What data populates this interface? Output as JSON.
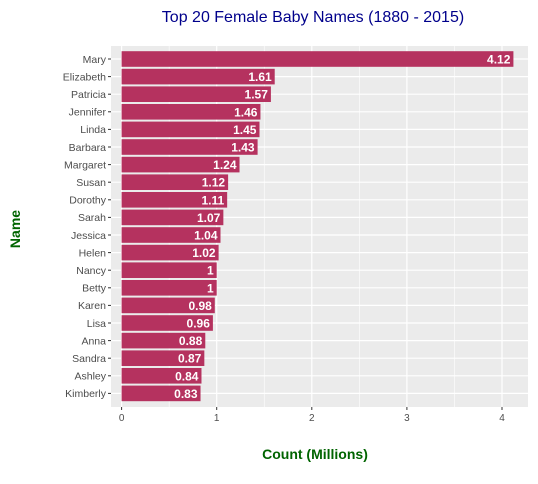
{
  "colors": {
    "title": "#00008b",
    "axis_title": "#006400",
    "bar": "#b5325f",
    "panel": "#ebebeb",
    "grid": "#ffffff",
    "bar_label": "#ffffff"
  },
  "chart_data": {
    "type": "bar",
    "orientation": "horizontal",
    "title": "Top 20 Female Baby Names (1880 - 2015)",
    "xlabel": "Count (Millions)",
    "ylabel": "Name",
    "xlim": [
      0,
      4.3
    ],
    "xticks": [
      0,
      1,
      2,
      3,
      4
    ],
    "grid": true,
    "categories": [
      "Mary",
      "Elizabeth",
      "Patricia",
      "Jennifer",
      "Linda",
      "Barbara",
      "Margaret",
      "Susan",
      "Dorothy",
      "Sarah",
      "Jessica",
      "Helen",
      "Nancy",
      "Betty",
      "Karen",
      "Lisa",
      "Anna",
      "Sandra",
      "Ashley",
      "Kimberly"
    ],
    "values": [
      4.12,
      1.61,
      1.57,
      1.46,
      1.45,
      1.43,
      1.24,
      1.12,
      1.11,
      1.07,
      1.04,
      1.02,
      1,
      1,
      0.98,
      0.96,
      0.88,
      0.87,
      0.84,
      0.83
    ],
    "labels": [
      "4.12",
      "1.61",
      "1.57",
      "1.46",
      "1.45",
      "1.43",
      "1.24",
      "1.12",
      "1.11",
      "1.07",
      "1.04",
      "1.02",
      "1",
      "1",
      "0.98",
      "0.96",
      "0.88",
      "0.87",
      "0.84",
      "0.83"
    ]
  }
}
